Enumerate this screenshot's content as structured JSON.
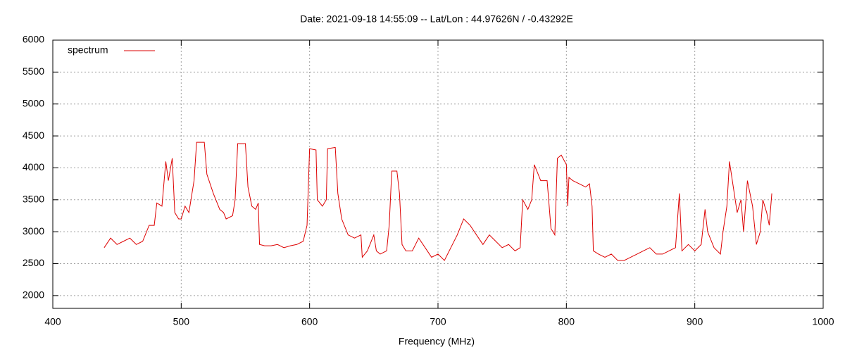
{
  "chart_data": {
    "type": "line",
    "title": "Date: 2021-09-18 14:55:09  --  Lat/Lon : 44.97626N / -0.43292E",
    "x_label": "Frequency (MHz)",
    "xlim": [
      400,
      1000
    ],
    "xticks": [
      400,
      500,
      600,
      700,
      800,
      900,
      1000
    ],
    "ylim": [
      1800,
      6000
    ],
    "yticks": [
      2000,
      2500,
      3000,
      3500,
      4000,
      4500,
      5000,
      5500,
      6000
    ],
    "grid": true,
    "legend": "top-left",
    "series": [
      {
        "name": "spectrum",
        "color": "#dd0000",
        "x": [
          440,
          445,
          450,
          455,
          460,
          465,
          470,
          475,
          479,
          481,
          485,
          488,
          490,
          493,
          495,
          498,
          500,
          503,
          506,
          510,
          512,
          518,
          520,
          525,
          530,
          533,
          535,
          540,
          542,
          544,
          550,
          552,
          555,
          558,
          560,
          561,
          565,
          570,
          575,
          580,
          585,
          590,
          595,
          598,
          600,
          605,
          606,
          610,
          613,
          614,
          620,
          622,
          625,
          630,
          635,
          640,
          641,
          645,
          650,
          652,
          655,
          660,
          662,
          664,
          668,
          670,
          672,
          675,
          680,
          685,
          690,
          695,
          700,
          705,
          710,
          715,
          720,
          725,
          730,
          735,
          740,
          745,
          750,
          755,
          760,
          764,
          766,
          770,
          773,
          775,
          780,
          785,
          788,
          791,
          793,
          796,
          800,
          801,
          802,
          805,
          810,
          815,
          818,
          820,
          821,
          825,
          830,
          835,
          840,
          845,
          850,
          855,
          860,
          865,
          870,
          875,
          880,
          885,
          888,
          890,
          895,
          900,
          905,
          908,
          910,
          915,
          920,
          922,
          925,
          927,
          930,
          933,
          936,
          938,
          941,
          945,
          948,
          951,
          953,
          956,
          958,
          960
        ],
        "values": [
          2750,
          2900,
          2800,
          2850,
          2900,
          2800,
          2850,
          3100,
          3100,
          3450,
          3400,
          4100,
          3800,
          4150,
          3300,
          3200,
          3200,
          3400,
          3300,
          3800,
          4400,
          4400,
          3900,
          3600,
          3350,
          3300,
          3200,
          3250,
          3500,
          4380,
          4380,
          3700,
          3400,
          3350,
          3450,
          2800,
          2780,
          2780,
          2800,
          2750,
          2780,
          2800,
          2850,
          3100,
          4300,
          4280,
          3500,
          3400,
          3500,
          4300,
          4320,
          3600,
          3200,
          2950,
          2900,
          2950,
          2600,
          2700,
          2950,
          2700,
          2650,
          2700,
          3100,
          3950,
          3950,
          3600,
          2800,
          2700,
          2700,
          2900,
          2750,
          2600,
          2650,
          2550,
          2750,
          2950,
          3200,
          3100,
          2950,
          2800,
          2950,
          2850,
          2750,
          2800,
          2700,
          2750,
          3500,
          3350,
          3500,
          4050,
          3800,
          3800,
          3050,
          2950,
          4150,
          4200,
          4050,
          3400,
          3850,
          3800,
          3750,
          3700,
          3750,
          3400,
          2700,
          2650,
          2600,
          2650,
          2550,
          2550,
          2600,
          2650,
          2700,
          2750,
          2650,
          2650,
          2700,
          2750,
          3600,
          2700,
          2800,
          2700,
          2800,
          3350,
          3000,
          2750,
          2650,
          3000,
          3400,
          4100,
          3700,
          3300,
          3500,
          3000,
          3800,
          3400,
          2800,
          3000,
          3500,
          3300,
          3100,
          3600
        ]
      }
    ]
  }
}
